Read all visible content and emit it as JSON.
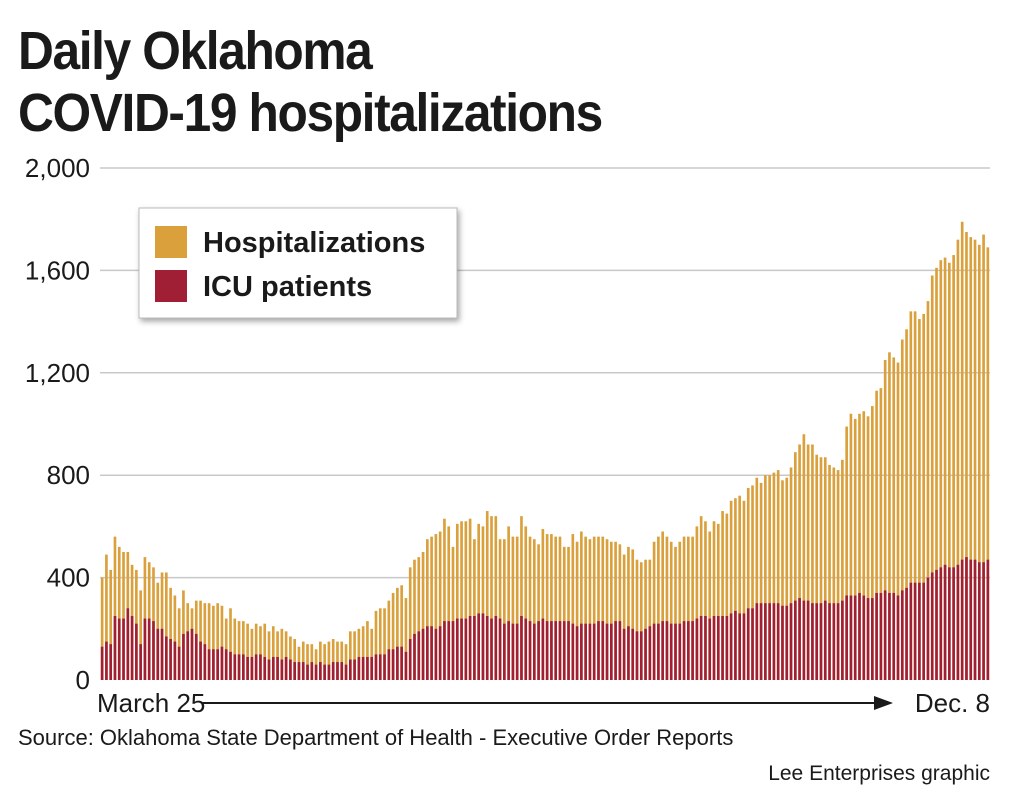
{
  "title": {
    "line1": "Daily Oklahoma",
    "line2": "COVID-19 hospitalizations"
  },
  "source": "Source: Oklahoma State Department of Health - Executive Order Reports",
  "credit": "Lee Enterprises graphic",
  "colors": {
    "hospitalizations": "#d9a03c",
    "icu": "#a11f35",
    "grid": "#c8c8c8",
    "text": "#1a1a1a"
  },
  "chart_data": {
    "type": "bar",
    "title": "Daily Oklahoma COVID-19 hospitalizations",
    "xlabel": "",
    "ylabel": "",
    "ylim": [
      0,
      2000
    ],
    "yticks": [
      "0",
      "400",
      "800",
      "1,200",
      "1,600",
      "2,000"
    ],
    "ytick_values": [
      0,
      400,
      800,
      1200,
      1600,
      2000
    ],
    "x_start_label": "March 25",
    "x_end_label": "Dec. 8",
    "grid": true,
    "legend_position": "top-left",
    "legend": [
      "Hospitalizations",
      "ICU patients"
    ],
    "series": [
      {
        "name": "Hospitalizations",
        "values": [
          400,
          490,
          430,
          560,
          520,
          500,
          500,
          450,
          430,
          350,
          480,
          460,
          440,
          380,
          420,
          420,
          360,
          330,
          280,
          350,
          300,
          280,
          310,
          310,
          300,
          300,
          290,
          300,
          290,
          240,
          280,
          240,
          230,
          230,
          220,
          200,
          220,
          210,
          220,
          190,
          210,
          190,
          200,
          190,
          170,
          160,
          130,
          150,
          140,
          140,
          120,
          150,
          140,
          150,
          160,
          150,
          150,
          140,
          190,
          190,
          200,
          210,
          230,
          200,
          270,
          280,
          280,
          310,
          340,
          360,
          370,
          320,
          440,
          470,
          480,
          500,
          550,
          560,
          570,
          580,
          630,
          600,
          520,
          610,
          620,
          620,
          630,
          550,
          610,
          600,
          660,
          640,
          640,
          550,
          550,
          600,
          560,
          560,
          640,
          600,
          560,
          550,
          530,
          590,
          570,
          570,
          560,
          560,
          520,
          520,
          570,
          540,
          580,
          560,
          550,
          560,
          560,
          560,
          550,
          540,
          540,
          530,
          490,
          520,
          510,
          470,
          460,
          470,
          470,
          540,
          560,
          580,
          560,
          540,
          520,
          540,
          560,
          560,
          560,
          600,
          640,
          620,
          580,
          620,
          610,
          660,
          650,
          700,
          710,
          720,
          700,
          750,
          760,
          790,
          770,
          800,
          800,
          810,
          820,
          780,
          790,
          830,
          890,
          920,
          960,
          920,
          920,
          880,
          870,
          870,
          840,
          830,
          820,
          860,
          990,
          1040,
          1020,
          1040,
          1050,
          1030,
          1070,
          1130,
          1140,
          1250,
          1280,
          1260,
          1240,
          1330,
          1370,
          1440,
          1440,
          1410,
          1430,
          1480,
          1580,
          1610,
          1640,
          1650,
          1630,
          1660,
          1720,
          1790,
          1750,
          1730,
          1720,
          1700,
          1740,
          1690
        ]
      },
      {
        "name": "ICU patients",
        "values": [
          130,
          150,
          140,
          250,
          240,
          240,
          280,
          250,
          220,
          140,
          240,
          240,
          230,
          200,
          200,
          170,
          160,
          150,
          130,
          180,
          190,
          200,
          180,
          150,
          140,
          120,
          120,
          120,
          130,
          120,
          110,
          100,
          100,
          100,
          90,
          90,
          100,
          100,
          90,
          80,
          90,
          90,
          80,
          90,
          80,
          70,
          70,
          70,
          60,
          70,
          60,
          70,
          60,
          60,
          70,
          70,
          70,
          60,
          80,
          80,
          90,
          90,
          90,
          90,
          100,
          100,
          100,
          120,
          120,
          130,
          130,
          110,
          160,
          180,
          190,
          200,
          210,
          210,
          200,
          210,
          230,
          230,
          230,
          240,
          240,
          240,
          250,
          250,
          260,
          260,
          250,
          240,
          250,
          240,
          220,
          230,
          220,
          220,
          250,
          240,
          230,
          220,
          230,
          240,
          230,
          230,
          230,
          230,
          230,
          230,
          220,
          210,
          220,
          220,
          220,
          220,
          230,
          230,
          220,
          220,
          230,
          230,
          200,
          210,
          200,
          190,
          190,
          200,
          210,
          220,
          220,
          230,
          230,
          220,
          220,
          220,
          230,
          230,
          230,
          240,
          250,
          250,
          240,
          250,
          250,
          250,
          250,
          260,
          270,
          260,
          260,
          280,
          280,
          300,
          300,
          300,
          300,
          300,
          300,
          290,
          290,
          300,
          310,
          320,
          310,
          310,
          300,
          300,
          300,
          310,
          300,
          300,
          300,
          310,
          330,
          330,
          330,
          340,
          330,
          320,
          320,
          340,
          340,
          350,
          340,
          340,
          330,
          350,
          360,
          380,
          380,
          380,
          380,
          400,
          420,
          430,
          440,
          450,
          440,
          440,
          450,
          470,
          480,
          470,
          470,
          460,
          460,
          470
        ]
      }
    ]
  }
}
